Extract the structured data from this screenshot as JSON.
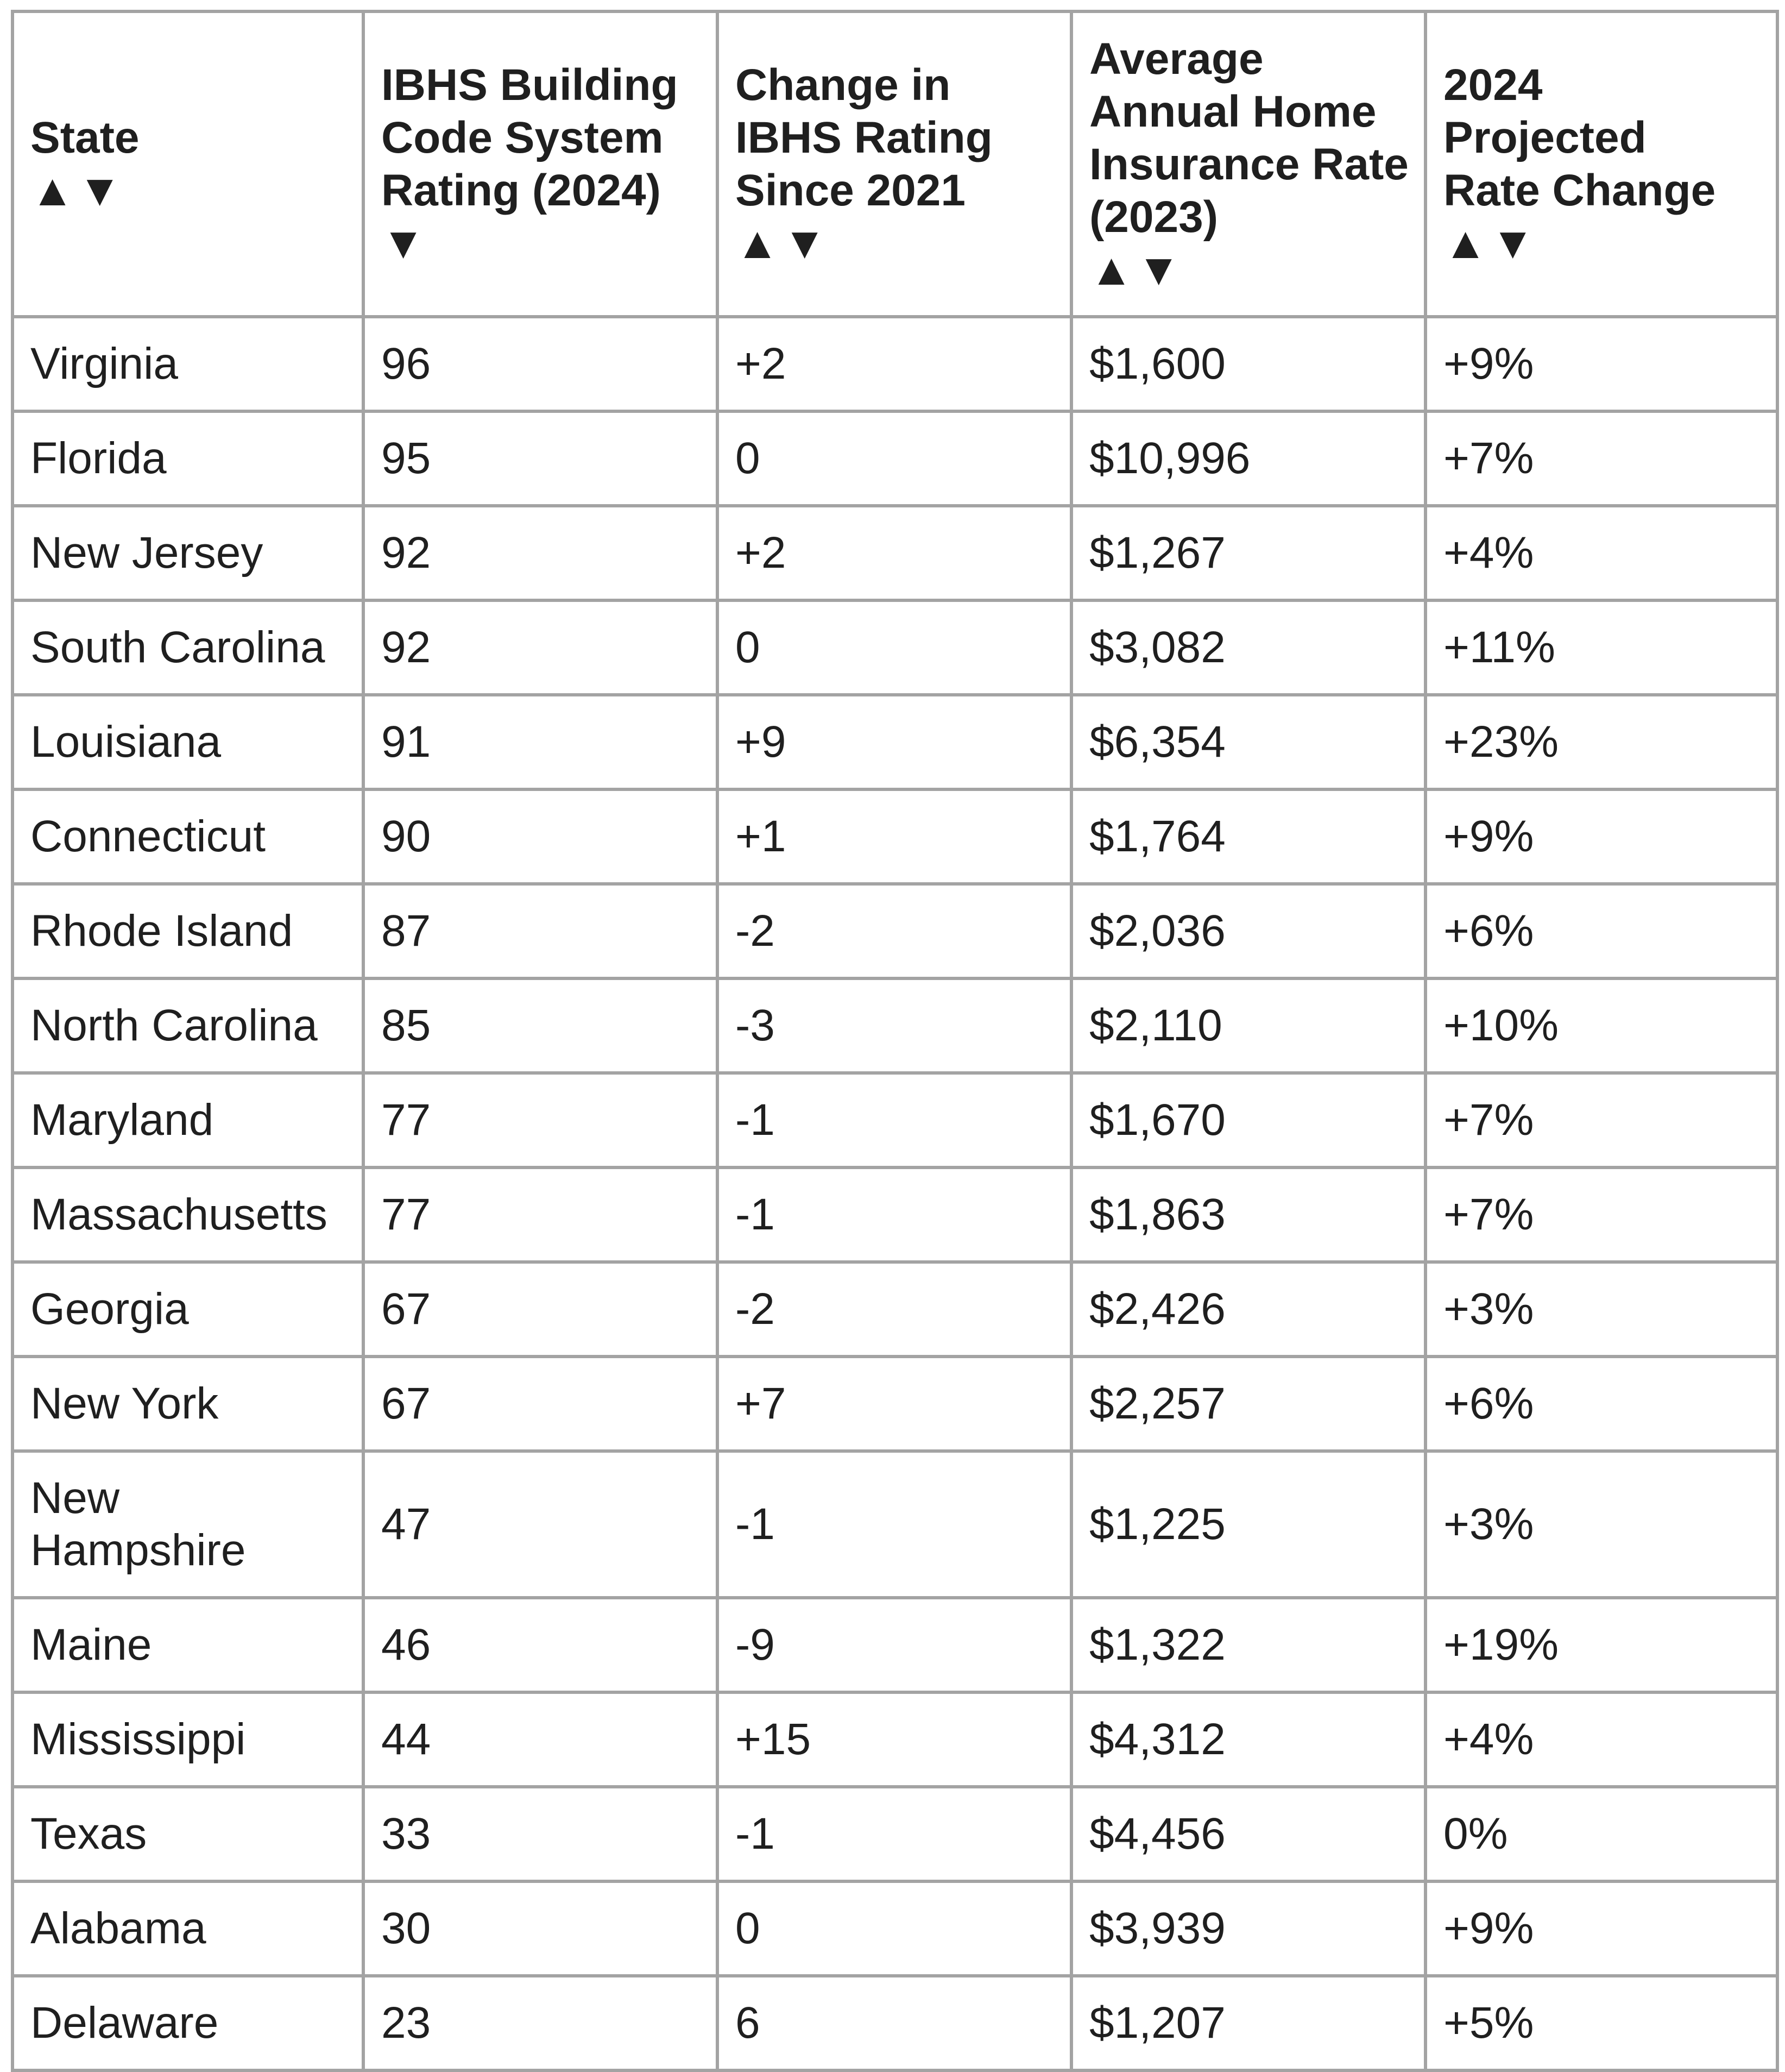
{
  "table": {
    "headers": [
      {
        "label": "State",
        "sort": "▲▼"
      },
      {
        "label": "IBHS Building Code System Rating (2024)",
        "sort": "▼"
      },
      {
        "label": "Change in IBHS Rating Since 2021",
        "sort": "▲▼"
      },
      {
        "label": "Average Annual Home Insurance Rate (2023)",
        "sort": "▲▼"
      },
      {
        "label": "2024 Projected Rate Change",
        "sort": "▲▼"
      }
    ],
    "rows": [
      [
        "Virginia",
        "96",
        "+2",
        "$1,600",
        "+9%"
      ],
      [
        "Florida",
        "95",
        "0",
        "$10,996",
        "+7%"
      ],
      [
        "New Jersey",
        "92",
        "+2",
        "$1,267",
        "+4%"
      ],
      [
        "South Carolina",
        "92",
        "0",
        "$3,082",
        "+11%"
      ],
      [
        "Louisiana",
        "91",
        "+9",
        "$6,354",
        "+23%"
      ],
      [
        "Connecticut",
        "90",
        "+1",
        "$1,764",
        "+9%"
      ],
      [
        "Rhode Island",
        "87",
        "-2",
        "$2,036",
        "+6%"
      ],
      [
        "North Carolina",
        "85",
        "-3",
        "$2,110",
        "+10%"
      ],
      [
        "Maryland",
        "77",
        "-1",
        "$1,670",
        "+7%"
      ],
      [
        "Massachusetts",
        "77",
        "-1",
        "$1,863",
        "+7%"
      ],
      [
        "Georgia",
        "67",
        "-2",
        "$2,426",
        "+3%"
      ],
      [
        "New York",
        "67",
        "+7",
        "$2,257",
        "+6%"
      ],
      [
        "New Hampshire",
        "47",
        "-1",
        "$1,225",
        "+3%"
      ],
      [
        "Maine",
        "46",
        "-9",
        "$1,322",
        "+19%"
      ],
      [
        "Mississippi",
        "44",
        "+15",
        "$4,312",
        "+4%"
      ],
      [
        "Texas",
        "33",
        "-1",
        "$4,456",
        "0%"
      ],
      [
        "Alabama",
        "30",
        "0",
        "$3,939",
        "+9%"
      ],
      [
        "Delaware",
        "23",
        "6",
        "$1,207",
        "+5%"
      ]
    ]
  }
}
